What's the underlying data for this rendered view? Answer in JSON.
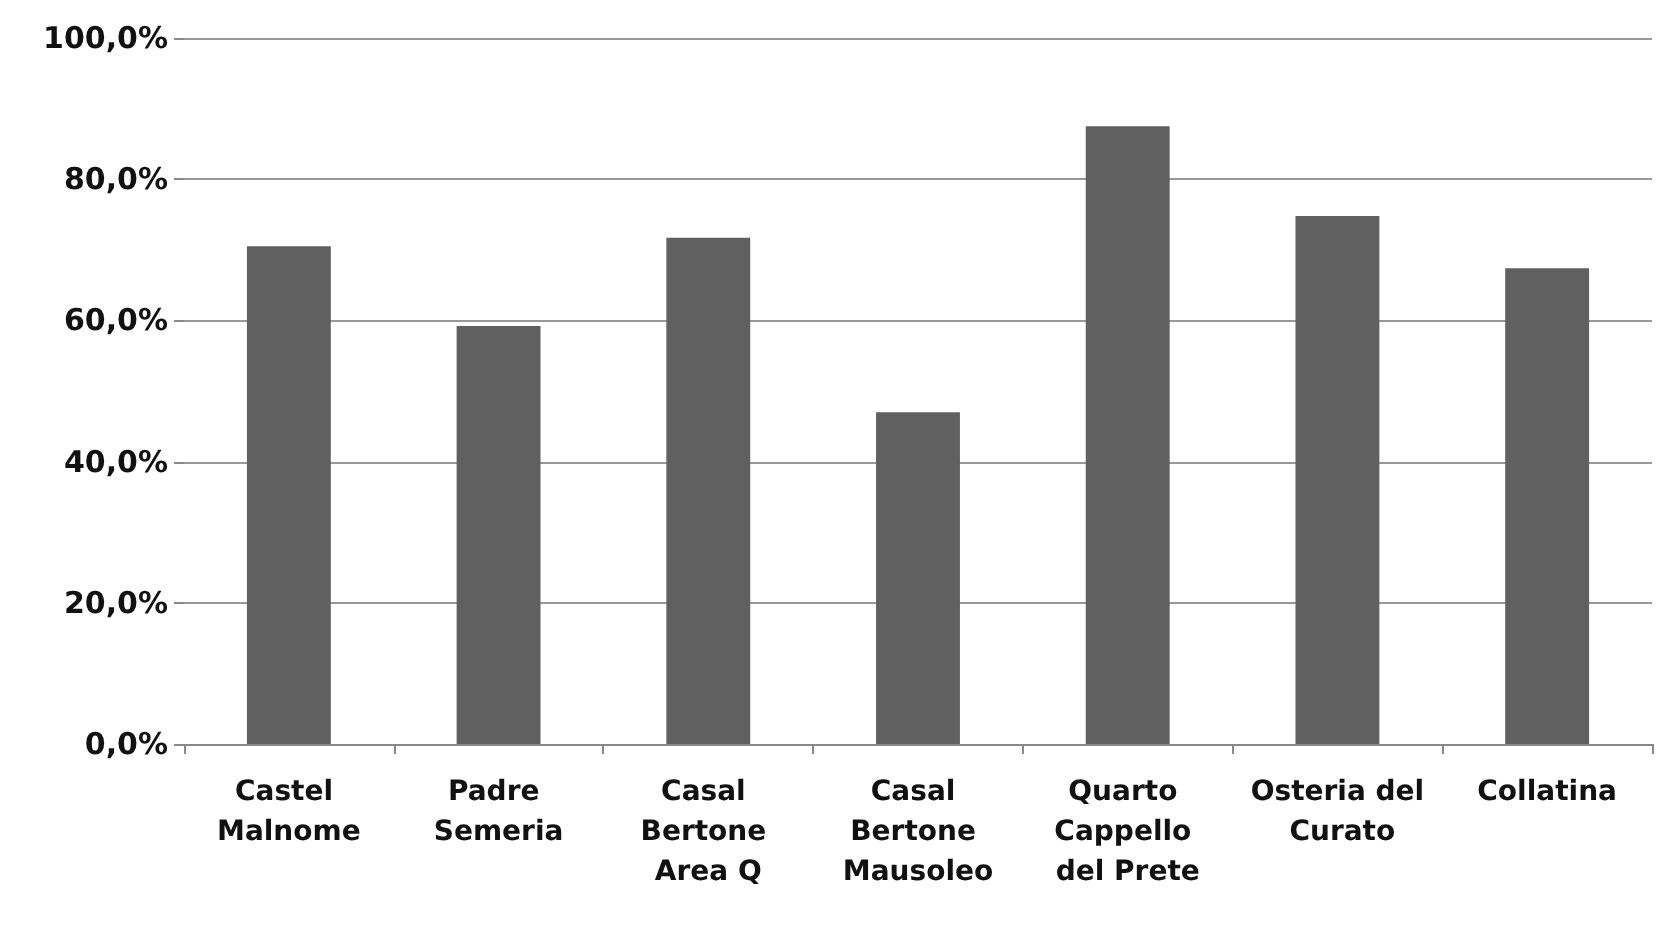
{
  "chart_data": {
    "type": "bar",
    "categories": [
      "Castel Malnome",
      "Padre Semeria",
      "Casal Bertone Area Q",
      "Casal Bertone Mausoleo",
      "Quarto Cappello del Prete",
      "Osteria del Curato",
      "Collatina"
    ],
    "values": [
      70.5,
      59.2,
      71.7,
      47.0,
      87.5,
      74.8,
      67.4
    ],
    "color": "#606060",
    "ylim": [
      0,
      100
    ],
    "yticks": [
      {
        "value": 0,
        "label": "0,0%"
      },
      {
        "value": 20,
        "label": "20,0%"
      },
      {
        "value": 40,
        "label": "40,0%"
      },
      {
        "value": 60,
        "label": "60,0%"
      },
      {
        "value": 80,
        "label": "80,0%"
      },
      {
        "value": 100,
        "label": "100,0%"
      }
    ],
    "grid": true
  }
}
